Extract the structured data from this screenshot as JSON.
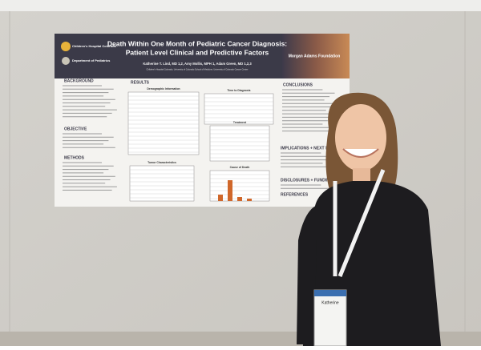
{
  "poster": {
    "title": "Death Within One Month of Pediatric Cancer Diagnosis:\nPatient Level Clinical and Predictive Factors",
    "authors": "Katherine T. Lind, MD 1,2, Amy Mollis, MPH 1, Adam Green, MD 1,2,3",
    "affiliations": "Children's Hospital Colorado, University of Colorado School of Medicine, University of Colorado Cancer Center",
    "logos": [
      "Children's Hospital Colorado",
      "Department of Pediatrics",
      "Morgan Adams Foundation"
    ],
    "sections": [
      "BACKGROUND",
      "RESULTS",
      "CONCLUSIONS",
      "OBJECTIVE",
      "METHODS",
      "IMPLICATIONS + NEXT STEPS",
      "DISCLOSURES + FUNDING",
      "REFERENCES"
    ],
    "table_titles": [
      "Demographic Information",
      "Time to Diagnosis",
      "Treatment",
      "Tumor Characteristics",
      "Cause of Death"
    ]
  },
  "badge": {
    "name": "Katherine"
  }
}
